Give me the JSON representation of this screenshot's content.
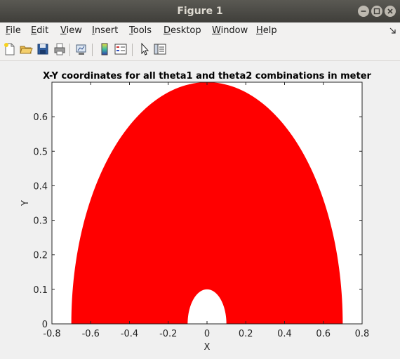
{
  "window": {
    "title": "Figure 1",
    "buttons": [
      "minimize-icon",
      "maximize-icon",
      "close-icon"
    ]
  },
  "menubar": {
    "items": [
      {
        "label": "File",
        "mnemonic": "F"
      },
      {
        "label": "Edit",
        "mnemonic": "E"
      },
      {
        "label": "View",
        "mnemonic": "V"
      },
      {
        "label": "Insert",
        "mnemonic": "I"
      },
      {
        "label": "Tools",
        "mnemonic": "T"
      },
      {
        "label": "Desktop",
        "mnemonic": "D"
      },
      {
        "label": "Window",
        "mnemonic": "W"
      },
      {
        "label": "Help",
        "mnemonic": "H"
      }
    ]
  },
  "toolbar": {
    "buttons": [
      "new-figure-icon",
      "open-file-icon",
      "save-icon",
      "print-icon",
      "link-plot-icon",
      "colorbar-icon",
      "legend-icon",
      "edit-plot-arrow-icon",
      "property-inspector-icon"
    ]
  },
  "chart_data": {
    "type": "area",
    "title": "X-Y coordinates for all theta1 and theta2 combinations in meter",
    "xlabel": "X",
    "ylabel": "Y",
    "xlim": [
      -0.8,
      0.8
    ],
    "ylim": [
      0,
      0.7
    ],
    "xticks": [
      "-0.8",
      "-0.6",
      "-0.4",
      "-0.2",
      "0",
      "0.2",
      "0.4",
      "0.6",
      "0.8"
    ],
    "yticks": [
      "0",
      "0.1",
      "0.2",
      "0.3",
      "0.4",
      "0.5",
      "0.6"
    ],
    "fill_color": "#ff0000",
    "grid": false,
    "outer_boundary": {
      "x_min": -0.7,
      "x_max": 0.7,
      "y_max": 0.7
    },
    "inner_hole": {
      "x_min": -0.1,
      "x_max": 0.1,
      "y_max": 0.1
    }
  }
}
